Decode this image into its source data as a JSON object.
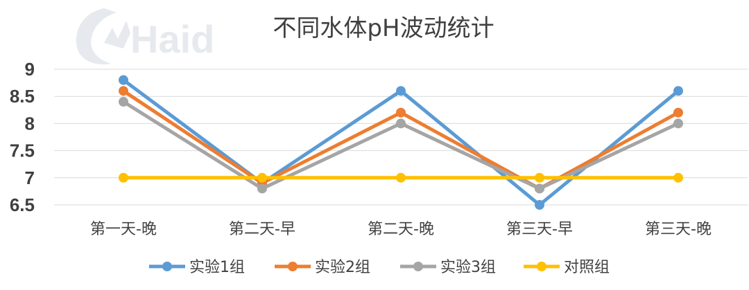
{
  "watermark": {
    "text": "Haid"
  },
  "chart_data": {
    "type": "line",
    "title": "不同水体pH波动统计",
    "xlabel": "",
    "ylabel": "",
    "categories": [
      "第一天-晚",
      "第二天-早",
      "第二天-晚",
      "第三天-早",
      "第三天-晚"
    ],
    "ylim": [
      6.5,
      9
    ],
    "yticks": [
      "9",
      "8.5",
      "8",
      "7.5",
      "7",
      "6.5"
    ],
    "ytick_values": [
      9,
      8.5,
      8,
      7.5,
      7,
      6.5
    ],
    "grid": true,
    "legend_position": "bottom",
    "series": [
      {
        "name": "实验1组",
        "color": "#5b9bd5",
        "values": [
          8.8,
          6.9,
          8.6,
          6.5,
          8.6
        ]
      },
      {
        "name": "实验2组",
        "color": "#ed7d31",
        "values": [
          8.6,
          6.9,
          8.2,
          6.8,
          8.2
        ]
      },
      {
        "name": "实验3组",
        "color": "#a5a5a5",
        "values": [
          8.4,
          6.8,
          8.0,
          6.8,
          8.0
        ]
      },
      {
        "name": "对照组",
        "color": "#ffc000",
        "values": [
          7.0,
          7.0,
          7.0,
          7.0,
          7.0
        ]
      }
    ]
  }
}
